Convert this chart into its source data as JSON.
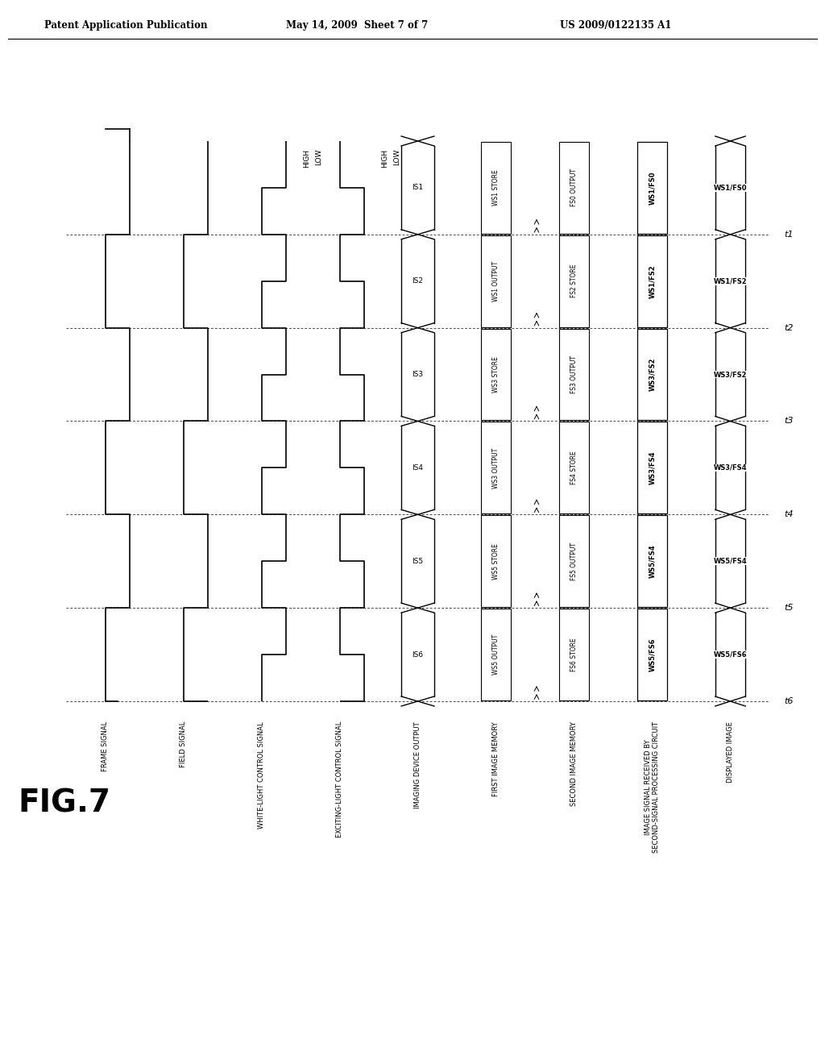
{
  "title_left": "Patent Application Publication",
  "title_mid": "May 14, 2009  Sheet 7 of 7",
  "title_right": "US 2009/0122135 A1",
  "fig_label": "FIG.7",
  "signal_labels": [
    "FRAME SIGNAL",
    "FIELD SIGNAL",
    "WHITE-LIGHT CONTROL SIGNAL",
    "EXCITING-LIGHT CONTROL SIGNAL",
    "IMAGING DEVICE OUTPUT",
    "FIRST IMAGE MEMORY",
    "SECOND IMAGE MEMORY",
    "IMAGE SIGNAL RECEIVED BY\nSECOND-SIGNAL PROCESSING CIRCUIT",
    "DISPLAYED IMAGE"
  ],
  "high_low_labels": [
    "HIGH",
    "LOW",
    "HIGH",
    "LOW"
  ],
  "time_labels": [
    "t1",
    "t2",
    "t3",
    "t4",
    "t5",
    "t6"
  ],
  "is_labels": [
    "IS1",
    "IS2",
    "IS3",
    "IS4",
    "IS5",
    "IS6"
  ],
  "first_mem_labels": [
    "WS1 STORE",
    "WS1 OUTPUT",
    "WS3 STORE",
    "WS3 OUTPUT",
    "WS5 STORE",
    "WS5 OUTPUT"
  ],
  "second_mem_labels": [
    "FS0 OUTPUT",
    "FS2 STORE",
    "FS3 OUTPUT",
    "FS4 STORE",
    "FS5 OUTPUT",
    "FS6 STORE"
  ],
  "img_sig_labels": [
    "WS1/FS0",
    "WS1/FS2",
    "WS3/FS2",
    "WS3/FS4",
    "WS5/FS4",
    "WS5/FS6"
  ],
  "displayed_labels": [
    "WS1/FS0",
    "WS1/FS2",
    "WS3/FS2",
    "WS3/FS4",
    "WS5/FS4",
    "WS5/FS6"
  ],
  "background": "#ffffff",
  "line_color": "#000000"
}
